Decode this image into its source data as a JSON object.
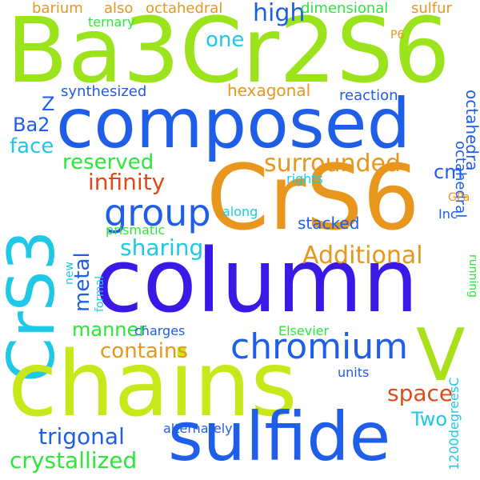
{
  "words": {
    "ba3cr2s6": "Ba3Cr2S6",
    "composed": "composed",
    "crs6": "CrS6",
    "column": "column",
    "crs3": "CrS3",
    "chains": "chains",
    "sulfide": "sulfide",
    "v": "V",
    "chromium": "chromium",
    "group": "group",
    "high": "high",
    "one": "one",
    "surrounded": "surrounded",
    "additional": "Additional",
    "space": "space",
    "crystallized": "crystallized",
    "trigonal": "trigonal",
    "contains": "contains",
    "manner": "manner",
    "metal": "metal",
    "sharing": "sharing",
    "infinity": "infinity",
    "reserved": "reserved",
    "face": "face",
    "ba2": "Ba2",
    "z": "Z",
    "cm": "cm",
    "two": "Two",
    "hexagonal": "hexagonal",
    "reaction": "reaction",
    "synthesized": "synthesized",
    "octahedra": "octahedra",
    "octahedral": "octahedral",
    "dimensional": "dimensional",
    "sulfur": "sulfur",
    "barium": "barium",
    "also": "also",
    "ternary": "ternary",
    "p6": "P6",
    "rights": "rights",
    "inc": "Inc",
    "gpa": "GPa",
    "along": "along",
    "stacked": "stacked",
    "prismatic": "prismatic",
    "new": "new",
    "formal": "formal",
    "charges": "charges",
    "elsevier": "Elsevier",
    "units": "units",
    "running": "running",
    "temp": "1200degreesC",
    "alternately": "alternately"
  },
  "palette": {
    "lime": "#9be31a",
    "blue": "#1f5ee8",
    "indigo": "#3a18e6",
    "orange": "#e8961c",
    "cyan": "#1ec8e6",
    "green": "#2ee63a",
    "red": "#e04a1a",
    "yellowgreen": "#c8e81a"
  }
}
